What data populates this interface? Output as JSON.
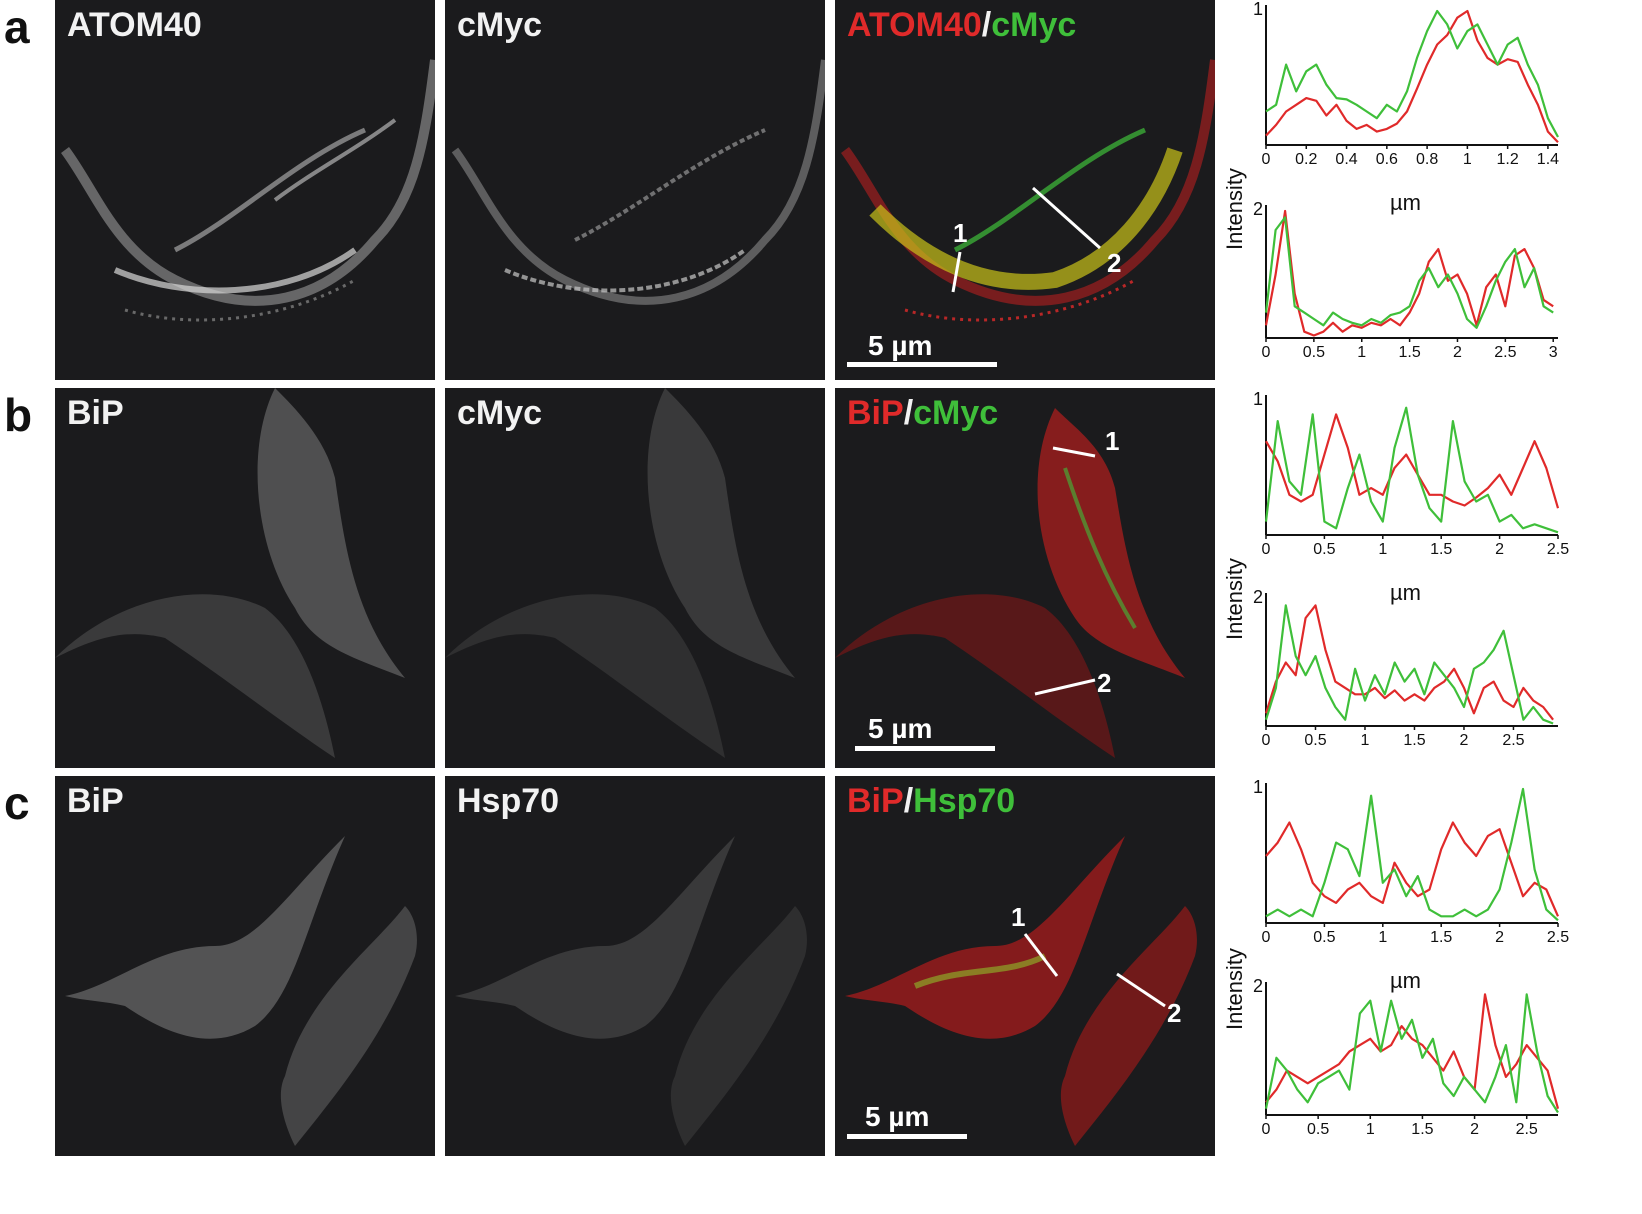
{
  "rows": [
    {
      "label": "a",
      "panel1_title": "ATOM40",
      "panel2_title": "cMyc",
      "merge_red": "ATOM40",
      "merge_sep": "/",
      "merge_green": "cMyc",
      "scale_text": "5 µm",
      "line1": "1",
      "line2": "2"
    },
    {
      "label": "b",
      "panel1_title": "BiP",
      "panel2_title": "cMyc",
      "merge_red": "BiP",
      "merge_sep": "/",
      "merge_green": "cMyc",
      "scale_text": "5 µm",
      "line1": "1",
      "line2": "2"
    },
    {
      "label": "c",
      "panel1_title": "BiP",
      "panel2_title": "Hsp70",
      "merge_red": "BiP",
      "merge_sep": "/",
      "merge_green": "Hsp70",
      "scale_text": "5 µm",
      "line1": "1",
      "line2": "2"
    }
  ],
  "ylabel": "Intensity",
  "xunit": "µm",
  "colors": {
    "red": "#e02a2a",
    "green": "#3fbf3a"
  },
  "chart_data": [
    {
      "type": "line",
      "row": "a",
      "profile": "1",
      "ylabel": "Intensity",
      "xlabel": "µm",
      "xlim": [
        0,
        1.45
      ],
      "ylim": [
        0,
        1
      ],
      "xticks": [
        "0",
        "0.2",
        "0.4",
        "0.6",
        "0.8",
        "1",
        "1.2",
        "1.4"
      ],
      "series": [
        {
          "color": "#e02a2a",
          "x": [
            0,
            0.05,
            0.1,
            0.15,
            0.2,
            0.25,
            0.3,
            0.35,
            0.4,
            0.45,
            0.5,
            0.55,
            0.6,
            0.65,
            0.7,
            0.75,
            0.8,
            0.85,
            0.9,
            0.95,
            1.0,
            1.05,
            1.1,
            1.15,
            1.2,
            1.25,
            1.3,
            1.35,
            1.4,
            1.45
          ],
          "y": [
            0.07,
            0.15,
            0.25,
            0.3,
            0.35,
            0.33,
            0.22,
            0.3,
            0.18,
            0.12,
            0.15,
            0.1,
            0.12,
            0.16,
            0.25,
            0.42,
            0.6,
            0.75,
            0.82,
            0.95,
            1.0,
            0.78,
            0.65,
            0.6,
            0.64,
            0.62,
            0.45,
            0.3,
            0.1,
            0.02
          ]
        },
        {
          "color": "#3fbf3a",
          "x": [
            0,
            0.05,
            0.1,
            0.15,
            0.2,
            0.25,
            0.3,
            0.35,
            0.4,
            0.45,
            0.5,
            0.55,
            0.6,
            0.65,
            0.7,
            0.75,
            0.8,
            0.85,
            0.9,
            0.95,
            1.0,
            1.05,
            1.1,
            1.15,
            1.2,
            1.25,
            1.3,
            1.35,
            1.4,
            1.45
          ],
          "y": [
            0.25,
            0.3,
            0.6,
            0.4,
            0.55,
            0.6,
            0.45,
            0.35,
            0.34,
            0.3,
            0.25,
            0.2,
            0.3,
            0.25,
            0.4,
            0.65,
            0.85,
            1.0,
            0.9,
            0.72,
            0.85,
            0.9,
            0.75,
            0.6,
            0.75,
            0.8,
            0.6,
            0.45,
            0.2,
            0.06
          ]
        }
      ]
    },
    {
      "type": "line",
      "row": "a",
      "profile": "2",
      "xlim": [
        0,
        3.05
      ],
      "ylim": [
        0,
        1
      ],
      "xticks": [
        "0",
        "0.5",
        "1",
        "1.5",
        "2",
        "2.5",
        "3"
      ],
      "series": [
        {
          "color": "#e02a2a",
          "x": [
            0,
            0.1,
            0.2,
            0.3,
            0.4,
            0.5,
            0.6,
            0.7,
            0.8,
            0.9,
            1.0,
            1.1,
            1.2,
            1.3,
            1.4,
            1.5,
            1.6,
            1.7,
            1.8,
            1.9,
            2.0,
            2.1,
            2.2,
            2.3,
            2.4,
            2.5,
            2.6,
            2.7,
            2.8,
            2.9,
            3.0
          ],
          "y": [
            0.1,
            0.5,
            1.0,
            0.35,
            0.05,
            0.02,
            0.05,
            0.12,
            0.05,
            0.1,
            0.08,
            0.12,
            0.1,
            0.15,
            0.1,
            0.2,
            0.35,
            0.6,
            0.7,
            0.45,
            0.5,
            0.35,
            0.1,
            0.4,
            0.5,
            0.25,
            0.65,
            0.7,
            0.55,
            0.3,
            0.25
          ]
        },
        {
          "color": "#3fbf3a",
          "x": [
            0,
            0.1,
            0.2,
            0.3,
            0.4,
            0.5,
            0.6,
            0.7,
            0.8,
            0.9,
            1.0,
            1.1,
            1.2,
            1.3,
            1.4,
            1.5,
            1.6,
            1.7,
            1.8,
            1.9,
            2.0,
            2.1,
            2.2,
            2.3,
            2.4,
            2.5,
            2.6,
            2.7,
            2.8,
            2.9,
            3.0
          ],
          "y": [
            0.2,
            0.85,
            0.95,
            0.25,
            0.2,
            0.15,
            0.1,
            0.2,
            0.15,
            0.12,
            0.1,
            0.15,
            0.12,
            0.18,
            0.2,
            0.25,
            0.45,
            0.55,
            0.4,
            0.5,
            0.35,
            0.15,
            0.08,
            0.25,
            0.45,
            0.6,
            0.7,
            0.4,
            0.55,
            0.25,
            0.2
          ]
        }
      ]
    },
    {
      "type": "line",
      "row": "b",
      "profile": "1",
      "ylabel": "Intensity",
      "xlabel": "µm",
      "xlim": [
        0,
        2.5
      ],
      "ylim": [
        0,
        1
      ],
      "xticks": [
        "0",
        "0.5",
        "1",
        "1.5",
        "2",
        "2.5"
      ],
      "series": [
        {
          "color": "#e02a2a",
          "x": [
            0,
            0.1,
            0.2,
            0.3,
            0.4,
            0.5,
            0.6,
            0.7,
            0.8,
            0.9,
            1.0,
            1.1,
            1.2,
            1.3,
            1.4,
            1.5,
            1.6,
            1.7,
            1.8,
            1.9,
            2.0,
            2.1,
            2.2,
            2.3,
            2.4,
            2.5
          ],
          "y": [
            0.7,
            0.55,
            0.3,
            0.25,
            0.3,
            0.6,
            0.9,
            0.65,
            0.3,
            0.35,
            0.3,
            0.5,
            0.6,
            0.45,
            0.3,
            0.3,
            0.25,
            0.22,
            0.28,
            0.35,
            0.45,
            0.3,
            0.5,
            0.7,
            0.5,
            0.2
          ]
        },
        {
          "color": "#3fbf3a",
          "x": [
            0,
            0.1,
            0.2,
            0.3,
            0.4,
            0.5,
            0.6,
            0.7,
            0.8,
            0.9,
            1.0,
            1.1,
            1.2,
            1.3,
            1.4,
            1.5,
            1.6,
            1.7,
            1.8,
            1.9,
            2.0,
            2.1,
            2.2,
            2.3,
            2.4,
            2.5
          ],
          "y": [
            0.1,
            0.85,
            0.4,
            0.3,
            0.9,
            0.1,
            0.05,
            0.35,
            0.6,
            0.25,
            0.1,
            0.65,
            0.95,
            0.45,
            0.2,
            0.1,
            0.85,
            0.4,
            0.25,
            0.3,
            0.1,
            0.15,
            0.05,
            0.08,
            0.05,
            0.02
          ]
        }
      ]
    },
    {
      "type": "line",
      "row": "b",
      "profile": "2",
      "xlim": [
        0,
        2.95
      ],
      "ylim": [
        0,
        1
      ],
      "xticks": [
        "0",
        "0.5",
        "1",
        "1.5",
        "2",
        "2.5"
      ],
      "series": [
        {
          "color": "#e02a2a",
          "x": [
            0,
            0.1,
            0.2,
            0.3,
            0.4,
            0.5,
            0.6,
            0.7,
            0.8,
            0.9,
            1.0,
            1.1,
            1.2,
            1.3,
            1.4,
            1.5,
            1.6,
            1.7,
            1.8,
            1.9,
            2.0,
            2.1,
            2.2,
            2.3,
            2.4,
            2.5,
            2.6,
            2.7,
            2.8,
            2.9
          ],
          "y": [
            0.1,
            0.35,
            0.5,
            0.4,
            0.85,
            0.95,
            0.6,
            0.35,
            0.3,
            0.25,
            0.25,
            0.3,
            0.22,
            0.28,
            0.2,
            0.25,
            0.2,
            0.3,
            0.35,
            0.45,
            0.3,
            0.1,
            0.3,
            0.35,
            0.2,
            0.15,
            0.3,
            0.2,
            0.15,
            0.05
          ]
        },
        {
          "color": "#3fbf3a",
          "x": [
            0,
            0.1,
            0.2,
            0.3,
            0.4,
            0.5,
            0.6,
            0.7,
            0.8,
            0.9,
            1.0,
            1.1,
            1.2,
            1.3,
            1.4,
            1.5,
            1.6,
            1.7,
            1.8,
            1.9,
            2.0,
            2.1,
            2.2,
            2.3,
            2.4,
            2.5,
            2.6,
            2.7,
            2.8,
            2.9
          ],
          "y": [
            0.05,
            0.3,
            0.95,
            0.55,
            0.4,
            0.55,
            0.3,
            0.15,
            0.05,
            0.45,
            0.2,
            0.4,
            0.25,
            0.5,
            0.35,
            0.45,
            0.25,
            0.5,
            0.4,
            0.3,
            0.15,
            0.45,
            0.5,
            0.6,
            0.75,
            0.4,
            0.05,
            0.15,
            0.05,
            0.02
          ]
        }
      ]
    },
    {
      "type": "line",
      "row": "c",
      "profile": "1",
      "ylabel": "Intensity",
      "xlabel": "µm",
      "xlim": [
        0,
        2.5
      ],
      "ylim": [
        0,
        1
      ],
      "xticks": [
        "0",
        "0.5",
        "1",
        "1.5",
        "2",
        "2.5"
      ],
      "series": [
        {
          "color": "#e02a2a",
          "x": [
            0,
            0.1,
            0.2,
            0.3,
            0.4,
            0.5,
            0.6,
            0.7,
            0.8,
            0.9,
            1.0,
            1.1,
            1.2,
            1.3,
            1.4,
            1.5,
            1.6,
            1.7,
            1.8,
            1.9,
            2.0,
            2.1,
            2.2,
            2.3,
            2.4,
            2.5
          ],
          "y": [
            0.5,
            0.6,
            0.75,
            0.55,
            0.3,
            0.2,
            0.15,
            0.25,
            0.3,
            0.2,
            0.15,
            0.45,
            0.3,
            0.2,
            0.25,
            0.55,
            0.75,
            0.6,
            0.5,
            0.65,
            0.7,
            0.45,
            0.2,
            0.3,
            0.25,
            0.05
          ]
        },
        {
          "color": "#3fbf3a",
          "x": [
            0,
            0.1,
            0.2,
            0.3,
            0.4,
            0.5,
            0.6,
            0.7,
            0.8,
            0.9,
            1.0,
            1.1,
            1.2,
            1.3,
            1.4,
            1.5,
            1.6,
            1.7,
            1.8,
            1.9,
            2.0,
            2.1,
            2.2,
            2.3,
            2.4,
            2.5
          ],
          "y": [
            0.05,
            0.1,
            0.05,
            0.1,
            0.05,
            0.3,
            0.6,
            0.55,
            0.35,
            0.95,
            0.3,
            0.4,
            0.2,
            0.35,
            0.1,
            0.05,
            0.05,
            0.1,
            0.05,
            0.1,
            0.25,
            0.6,
            1.0,
            0.4,
            0.1,
            0.02
          ]
        }
      ]
    },
    {
      "type": "line",
      "row": "c",
      "profile": "2",
      "xlim": [
        0,
        2.8
      ],
      "ylim": [
        0,
        1
      ],
      "xticks": [
        "0",
        "0.5",
        "1",
        "1.5",
        "2",
        "2.5"
      ],
      "series": [
        {
          "color": "#e02a2a",
          "x": [
            0,
            0.1,
            0.2,
            0.3,
            0.4,
            0.5,
            0.6,
            0.7,
            0.8,
            0.9,
            1.0,
            1.1,
            1.2,
            1.3,
            1.4,
            1.5,
            1.6,
            1.7,
            1.8,
            1.9,
            2.0,
            2.1,
            2.2,
            2.3,
            2.4,
            2.5,
            2.6,
            2.7,
            2.8
          ],
          "y": [
            0.1,
            0.2,
            0.35,
            0.3,
            0.25,
            0.3,
            0.35,
            0.4,
            0.5,
            0.55,
            0.6,
            0.5,
            0.55,
            0.7,
            0.6,
            0.55,
            0.45,
            0.35,
            0.5,
            0.3,
            0.2,
            0.95,
            0.55,
            0.3,
            0.4,
            0.55,
            0.45,
            0.35,
            0.05
          ]
        },
        {
          "color": "#3fbf3a",
          "x": [
            0,
            0.1,
            0.2,
            0.3,
            0.4,
            0.5,
            0.6,
            0.7,
            0.8,
            0.9,
            1.0,
            1.1,
            1.2,
            1.3,
            1.4,
            1.5,
            1.6,
            1.7,
            1.8,
            1.9,
            2.0,
            2.1,
            2.2,
            2.3,
            2.4,
            2.5,
            2.6,
            2.7,
            2.8
          ],
          "y": [
            0.05,
            0.45,
            0.35,
            0.2,
            0.1,
            0.25,
            0.3,
            0.35,
            0.2,
            0.8,
            0.9,
            0.5,
            0.9,
            0.6,
            0.75,
            0.45,
            0.6,
            0.25,
            0.15,
            0.3,
            0.2,
            0.1,
            0.3,
            0.55,
            0.1,
            0.95,
            0.5,
            0.15,
            0.02
          ]
        }
      ]
    }
  ]
}
